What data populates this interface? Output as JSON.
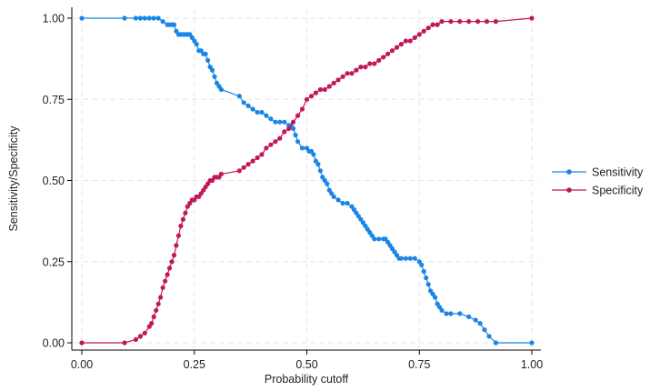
{
  "chart_data": {
    "type": "line",
    "title": "",
    "xlabel": "Probability cutoff",
    "ylabel": "Sensitivity/Specificity",
    "xlim": [
      0,
      1
    ],
    "ylim": [
      0,
      1
    ],
    "xticks": [
      "0.00",
      "0.25",
      "0.50",
      "0.75",
      "1.00"
    ],
    "yticks": [
      "0.00",
      "0.25",
      "0.50",
      "0.75",
      "1.00"
    ],
    "grid": true,
    "legend_position": "right",
    "series": [
      {
        "name": "Sensitivity",
        "color": "#1a85e8",
        "marker": "circle",
        "x": [
          0.0,
          0.095,
          0.12,
          0.13,
          0.14,
          0.15,
          0.16,
          0.17,
          0.18,
          0.19,
          0.195,
          0.2,
          0.205,
          0.21,
          0.215,
          0.22,
          0.225,
          0.23,
          0.235,
          0.24,
          0.245,
          0.25,
          0.255,
          0.26,
          0.265,
          0.27,
          0.275,
          0.28,
          0.285,
          0.29,
          0.295,
          0.3,
          0.305,
          0.31,
          0.35,
          0.36,
          0.37,
          0.38,
          0.39,
          0.4,
          0.41,
          0.42,
          0.43,
          0.44,
          0.45,
          0.46,
          0.465,
          0.47,
          0.475,
          0.48,
          0.49,
          0.5,
          0.505,
          0.51,
          0.515,
          0.52,
          0.525,
          0.53,
          0.535,
          0.54,
          0.545,
          0.55,
          0.555,
          0.56,
          0.57,
          0.58,
          0.59,
          0.6,
          0.605,
          0.61,
          0.615,
          0.62,
          0.625,
          0.63,
          0.635,
          0.64,
          0.645,
          0.65,
          0.66,
          0.67,
          0.675,
          0.68,
          0.685,
          0.69,
          0.695,
          0.7,
          0.705,
          0.71,
          0.72,
          0.73,
          0.74,
          0.75,
          0.755,
          0.76,
          0.765,
          0.77,
          0.775,
          0.78,
          0.785,
          0.79,
          0.795,
          0.8,
          0.81,
          0.82,
          0.84,
          0.86,
          0.875,
          0.885,
          0.895,
          0.905,
          0.92,
          1.0
        ],
        "y": [
          1.0,
          1.0,
          1.0,
          1.0,
          1.0,
          1.0,
          1.0,
          1.0,
          0.99,
          0.98,
          0.98,
          0.98,
          0.98,
          0.96,
          0.95,
          0.95,
          0.95,
          0.95,
          0.95,
          0.95,
          0.94,
          0.93,
          0.92,
          0.9,
          0.9,
          0.89,
          0.89,
          0.87,
          0.85,
          0.84,
          0.82,
          0.8,
          0.79,
          0.78,
          0.76,
          0.74,
          0.73,
          0.72,
          0.71,
          0.71,
          0.7,
          0.69,
          0.68,
          0.68,
          0.68,
          0.67,
          0.67,
          0.66,
          0.64,
          0.62,
          0.6,
          0.6,
          0.59,
          0.59,
          0.58,
          0.56,
          0.55,
          0.53,
          0.51,
          0.5,
          0.49,
          0.47,
          0.46,
          0.45,
          0.44,
          0.43,
          0.43,
          0.42,
          0.41,
          0.4,
          0.39,
          0.38,
          0.37,
          0.36,
          0.35,
          0.34,
          0.33,
          0.32,
          0.32,
          0.32,
          0.32,
          0.31,
          0.3,
          0.29,
          0.28,
          0.27,
          0.26,
          0.26,
          0.26,
          0.26,
          0.26,
          0.25,
          0.24,
          0.22,
          0.2,
          0.18,
          0.16,
          0.15,
          0.14,
          0.12,
          0.11,
          0.1,
          0.09,
          0.09,
          0.09,
          0.08,
          0.07,
          0.06,
          0.04,
          0.02,
          0.0,
          0.0
        ]
      },
      {
        "name": "Specificity",
        "color": "#c2185b",
        "marker": "circle",
        "x": [
          0.0,
          0.095,
          0.12,
          0.13,
          0.14,
          0.15,
          0.155,
          0.16,
          0.165,
          0.17,
          0.175,
          0.18,
          0.185,
          0.19,
          0.195,
          0.2,
          0.205,
          0.21,
          0.215,
          0.22,
          0.225,
          0.23,
          0.235,
          0.24,
          0.245,
          0.25,
          0.255,
          0.26,
          0.265,
          0.27,
          0.275,
          0.28,
          0.285,
          0.29,
          0.295,
          0.3,
          0.305,
          0.31,
          0.35,
          0.36,
          0.37,
          0.38,
          0.39,
          0.4,
          0.41,
          0.42,
          0.43,
          0.44,
          0.45,
          0.46,
          0.47,
          0.48,
          0.49,
          0.5,
          0.51,
          0.52,
          0.53,
          0.54,
          0.55,
          0.56,
          0.57,
          0.58,
          0.59,
          0.6,
          0.61,
          0.62,
          0.63,
          0.64,
          0.65,
          0.66,
          0.67,
          0.68,
          0.69,
          0.7,
          0.71,
          0.72,
          0.73,
          0.74,
          0.75,
          0.76,
          0.77,
          0.78,
          0.79,
          0.8,
          0.82,
          0.84,
          0.86,
          0.88,
          0.9,
          0.92,
          1.0
        ],
        "y": [
          0.0,
          0.0,
          0.01,
          0.02,
          0.03,
          0.05,
          0.06,
          0.08,
          0.1,
          0.12,
          0.14,
          0.17,
          0.19,
          0.21,
          0.23,
          0.25,
          0.27,
          0.3,
          0.33,
          0.36,
          0.38,
          0.4,
          0.42,
          0.43,
          0.44,
          0.44,
          0.45,
          0.45,
          0.46,
          0.47,
          0.48,
          0.49,
          0.5,
          0.5,
          0.51,
          0.51,
          0.51,
          0.52,
          0.53,
          0.54,
          0.55,
          0.56,
          0.57,
          0.58,
          0.6,
          0.61,
          0.62,
          0.63,
          0.65,
          0.66,
          0.68,
          0.7,
          0.72,
          0.75,
          0.76,
          0.77,
          0.78,
          0.78,
          0.79,
          0.8,
          0.81,
          0.82,
          0.83,
          0.83,
          0.84,
          0.85,
          0.85,
          0.86,
          0.86,
          0.87,
          0.88,
          0.89,
          0.9,
          0.91,
          0.92,
          0.93,
          0.93,
          0.94,
          0.95,
          0.96,
          0.97,
          0.98,
          0.98,
          0.99,
          0.99,
          0.99,
          0.99,
          0.99,
          0.99,
          0.99,
          1.0
        ]
      }
    ]
  }
}
